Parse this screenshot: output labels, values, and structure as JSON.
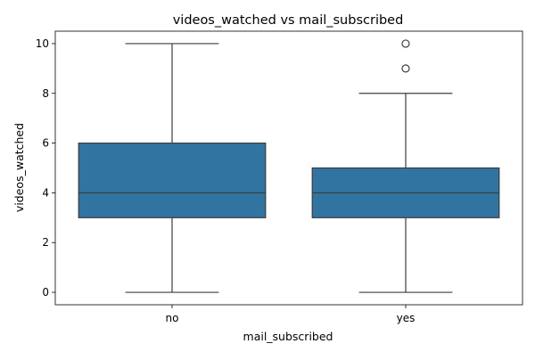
{
  "chart_data": {
    "type": "boxplot",
    "title": "videos_watched vs mail_subscribed",
    "xlabel": "mail_subscribed",
    "ylabel": "videos_watched",
    "categories": [
      "no",
      "yes"
    ],
    "ylim": [
      -0.5,
      10.5
    ],
    "y_ticks": [
      0,
      2,
      4,
      6,
      8,
      10
    ],
    "grid": false,
    "box_color": "#3274a1",
    "line_color": "#3d3d3d",
    "boxes": [
      {
        "label": "no",
        "whisker_low": 0,
        "q1": 3,
        "median": 4,
        "q3": 6,
        "whisker_high": 10,
        "outliers": []
      },
      {
        "label": "yes",
        "whisker_low": 0,
        "q1": 3,
        "median": 4,
        "q3": 5,
        "whisker_high": 8,
        "outliers": [
          9,
          10
        ]
      }
    ]
  }
}
